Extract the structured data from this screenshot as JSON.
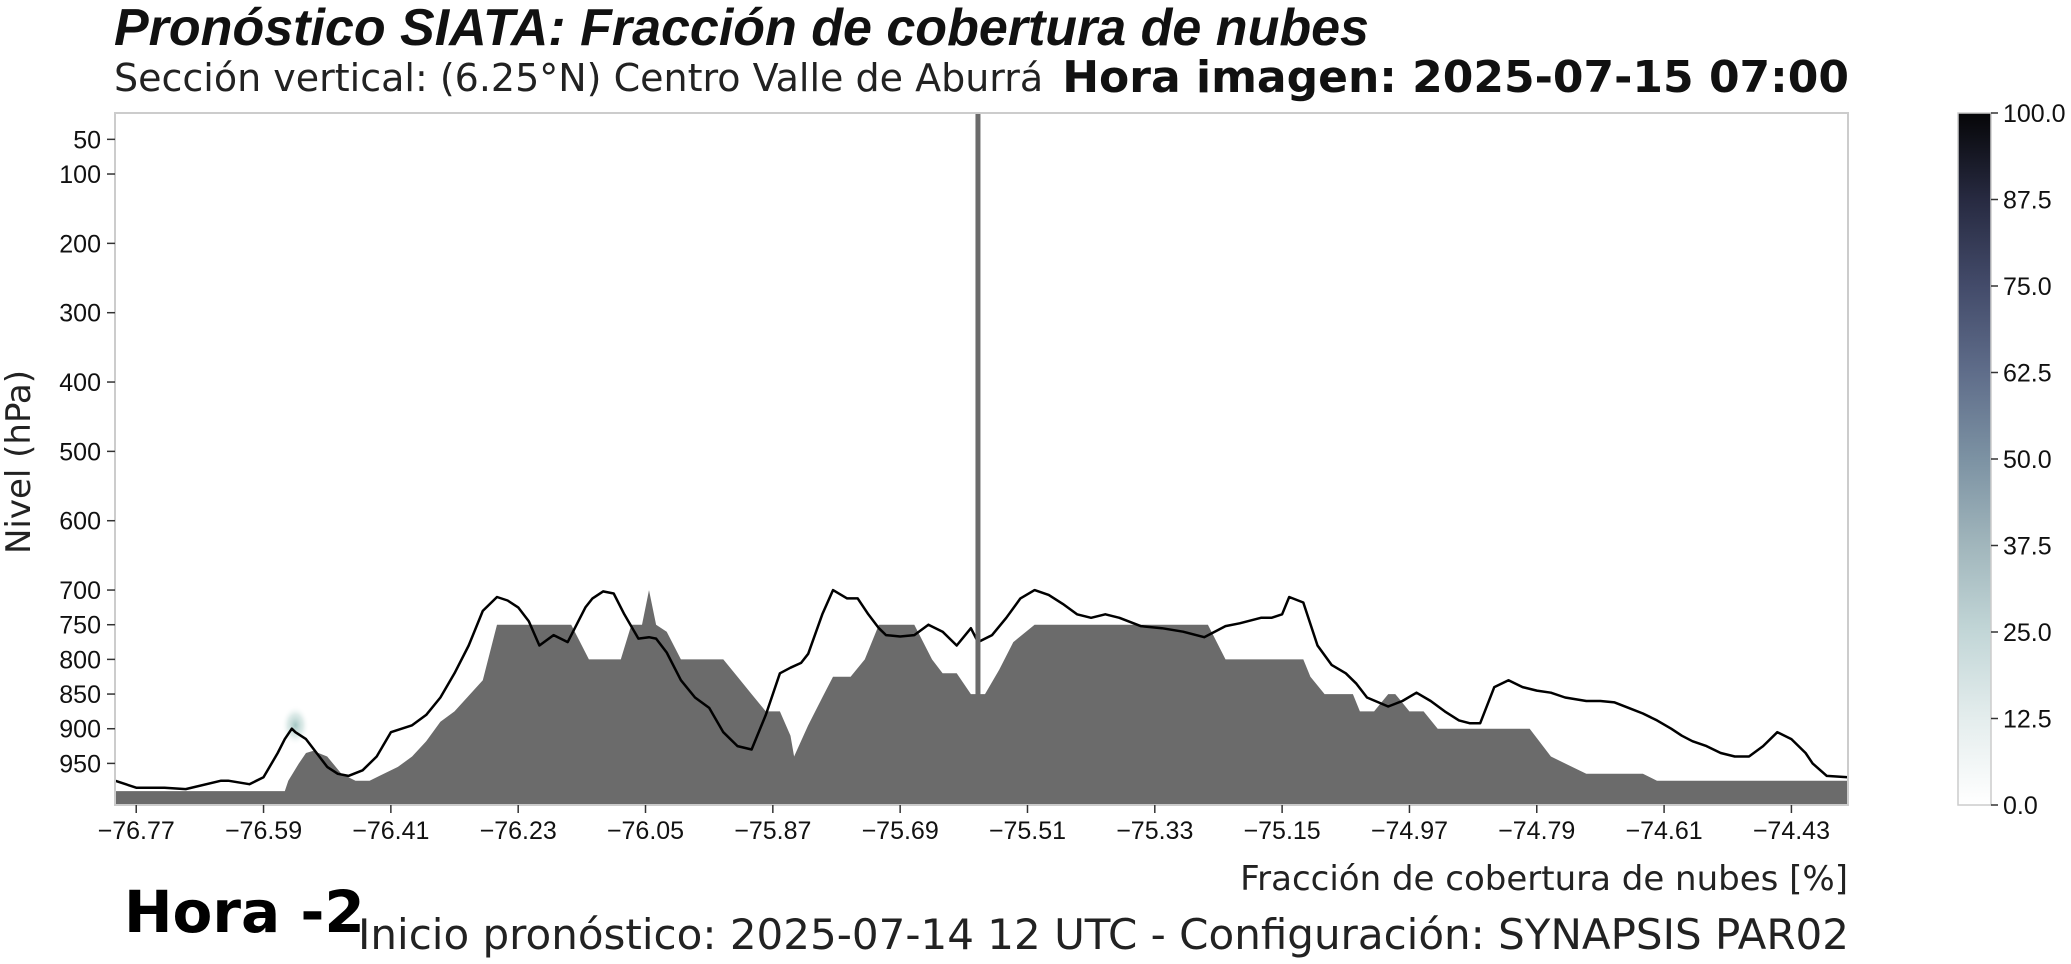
{
  "title": "Pronóstico SIATA: Fracción de cobertura de nubes",
  "subtitle": "Sección vertical: (6.25°N) Centro Valle de Aburrá",
  "hora_imagen": "Hora imagen: 2025-07-15 07:00",
  "hora_relativa": "Hora -2",
  "footer": "Inicio pronóstico: 2025-07-14 12 UTC - Configuración: SYNAPSIS PAR02",
  "colors": {
    "terrain": "#6b6b6b",
    "line": "#000000",
    "marker": "#6b6b6b",
    "frame": "#cccccc"
  },
  "chart_data": {
    "type": "area",
    "xlabel": "Fracción de cobertura de nubes [%]",
    "ylabel": "Nivel (hPa)",
    "xlim": [
      -76.8,
      -74.35
    ],
    "ylim": [
      1010,
      12
    ],
    "x_ticks": [
      -76.77,
      -76.59,
      -76.41,
      -76.23,
      -76.05,
      -75.87,
      -75.69,
      -75.51,
      -75.33,
      -75.15,
      -74.97,
      -74.79,
      -74.61,
      -74.43
    ],
    "x_tick_labels": [
      "−76.77",
      "−76.59",
      "−76.41",
      "−76.23",
      "−76.05",
      "−75.87",
      "−75.69",
      "−75.51",
      "−75.33",
      "−75.15",
      "−74.97",
      "−74.79",
      "−74.61",
      "−74.43"
    ],
    "y_ticks": [
      50,
      100,
      200,
      300,
      400,
      500,
      600,
      700,
      750,
      800,
      850,
      900,
      950
    ],
    "y_tick_labels": [
      "50",
      "100",
      "200",
      "300",
      "400",
      "500",
      "600",
      "700",
      "750",
      "800",
      "850",
      "900",
      "950"
    ],
    "marker_x": -75.58,
    "cloud_spot": {
      "x": -76.545,
      "y": 895,
      "value": 15
    },
    "terrain_series": {
      "x": [
        -76.8,
        -76.56,
        -76.555,
        -76.54,
        -76.53,
        -76.52,
        -76.5,
        -76.48,
        -76.46,
        -76.44,
        -76.4,
        -76.38,
        -76.36,
        -76.34,
        -76.32,
        -76.28,
        -76.26,
        -76.245,
        -76.22,
        -76.19,
        -76.17,
        -76.155,
        -76.13,
        -76.12,
        -76.09,
        -76.085,
        -76.07,
        -76.055,
        -76.045,
        -76.035,
        -76.02,
        -76.0,
        -75.98,
        -75.96,
        -75.94,
        -75.92,
        -75.9,
        -75.88,
        -75.86,
        -75.845,
        -75.84,
        -75.82,
        -75.8,
        -75.785,
        -75.76,
        -75.74,
        -75.72,
        -75.71,
        -75.69,
        -75.67,
        -75.645,
        -75.63,
        -75.61,
        -75.59,
        -75.58,
        -75.57,
        -75.55,
        -75.53,
        -75.5,
        -75.47,
        -75.44,
        -75.41,
        -75.38,
        -75.35,
        -75.32,
        -75.29,
        -75.26,
        -75.255,
        -75.23,
        -75.2,
        -75.17,
        -75.14,
        -75.12,
        -75.11,
        -75.09,
        -75.06,
        -75.05,
        -75.04,
        -75.02,
        -75.0,
        -74.99,
        -74.97,
        -74.95,
        -74.93,
        -74.92,
        -74.9,
        -74.87,
        -74.84,
        -74.83,
        -74.81,
        -74.8,
        -74.77,
        -74.74,
        -74.72,
        -74.7,
        -74.68,
        -74.66,
        -74.64,
        -74.62,
        -74.6,
        -74.55,
        -74.5,
        -74.45,
        -74.4,
        -74.35
      ],
      "y": [
        990,
        990,
        975,
        950,
        935,
        932,
        940,
        965,
        975,
        975,
        955,
        940,
        918,
        890,
        875,
        830,
        750,
        750,
        750,
        750,
        750,
        750,
        800,
        800,
        800,
        800,
        750,
        750,
        700,
        750,
        760,
        800,
        800,
        800,
        800,
        825,
        850,
        875,
        875,
        910,
        940,
        895,
        855,
        825,
        825,
        800,
        750,
        750,
        750,
        750,
        800,
        820,
        820,
        850,
        850,
        850,
        815,
        775,
        750,
        750,
        750,
        750,
        750,
        750,
        750,
        750,
        750,
        750,
        800,
        800,
        800,
        800,
        800,
        825,
        850,
        850,
        850,
        875,
        875,
        850,
        850,
        875,
        875,
        900,
        900,
        900,
        900,
        900,
        900,
        900,
        900,
        940,
        955,
        965,
        965,
        965,
        965,
        965,
        975,
        975,
        975,
        975,
        975,
        975,
        975
      ]
    },
    "line_series": {
      "x": [
        -76.8,
        -76.77,
        -76.73,
        -76.7,
        -76.65,
        -76.64,
        -76.61,
        -76.59,
        -76.57,
        -76.56,
        -76.55,
        -76.545,
        -76.53,
        -76.515,
        -76.5,
        -76.485,
        -76.47,
        -76.45,
        -76.43,
        -76.41,
        -76.38,
        -76.36,
        -76.34,
        -76.32,
        -76.3,
        -76.28,
        -76.26,
        -76.245,
        -76.23,
        -76.215,
        -76.2,
        -76.18,
        -76.16,
        -76.145,
        -76.135,
        -76.125,
        -76.11,
        -76.095,
        -76.08,
        -76.06,
        -76.045,
        -76.035,
        -76.02,
        -76.0,
        -75.98,
        -75.96,
        -75.94,
        -75.92,
        -75.9,
        -75.88,
        -75.86,
        -75.845,
        -75.83,
        -75.82,
        -75.8,
        -75.785,
        -75.765,
        -75.75,
        -75.735,
        -75.72,
        -75.71,
        -75.69,
        -75.67,
        -75.65,
        -75.63,
        -75.61,
        -75.59,
        -75.58,
        -75.56,
        -75.54,
        -75.52,
        -75.5,
        -75.48,
        -75.46,
        -75.44,
        -75.42,
        -75.4,
        -75.38,
        -75.35,
        -75.32,
        -75.29,
        -75.26,
        -75.23,
        -75.21,
        -75.18,
        -75.165,
        -75.15,
        -75.14,
        -75.12,
        -75.1,
        -75.08,
        -75.06,
        -75.045,
        -75.03,
        -75.0,
        -74.98,
        -74.96,
        -74.94,
        -74.92,
        -74.9,
        -74.885,
        -74.87,
        -74.85,
        -74.83,
        -74.81,
        -74.79,
        -74.77,
        -74.75,
        -74.72,
        -74.7,
        -74.68,
        -74.66,
        -74.64,
        -74.62,
        -74.6,
        -74.585,
        -74.57,
        -74.55,
        -74.53,
        -74.51,
        -74.49,
        -74.47,
        -74.45,
        -74.43,
        -74.41,
        -74.4,
        -74.38,
        -74.35
      ],
      "y": [
        975,
        985,
        985,
        987,
        975,
        975,
        980,
        970,
        935,
        915,
        900,
        905,
        915,
        935,
        955,
        965,
        968,
        960,
        940,
        905,
        895,
        880,
        855,
        820,
        780,
        730,
        710,
        715,
        725,
        745,
        780,
        765,
        775,
        745,
        725,
        712,
        702,
        705,
        735,
        770,
        768,
        770,
        790,
        830,
        855,
        870,
        905,
        925,
        930,
        880,
        820,
        812,
        805,
        792,
        735,
        700,
        712,
        712,
        735,
        755,
        765,
        767,
        765,
        750,
        760,
        780,
        755,
        775,
        765,
        740,
        712,
        700,
        707,
        720,
        735,
        740,
        735,
        740,
        752,
        755,
        760,
        768,
        752,
        748,
        740,
        740,
        735,
        710,
        718,
        780,
        808,
        820,
        835,
        855,
        868,
        860,
        848,
        860,
        875,
        888,
        892,
        892,
        840,
        830,
        840,
        845,
        848,
        855,
        860,
        860,
        862,
        870,
        878,
        888,
        900,
        910,
        918,
        925,
        935,
        940,
        940,
        925,
        905,
        915,
        935,
        950,
        968,
        970
      ]
    },
    "colorbar": {
      "range": [
        0,
        100
      ],
      "tick_labels": [
        "0.0",
        "12.5",
        "25.0",
        "37.5",
        "50.0",
        "62.5",
        "75.0",
        "87.5",
        "100.0"
      ],
      "colors": [
        "#ffffff",
        "#e4eded",
        "#c2d6d7",
        "#a1b6bc",
        "#7c92a3",
        "#5f6d8a",
        "#434b6a",
        "#272a41",
        "#060608"
      ]
    }
  }
}
